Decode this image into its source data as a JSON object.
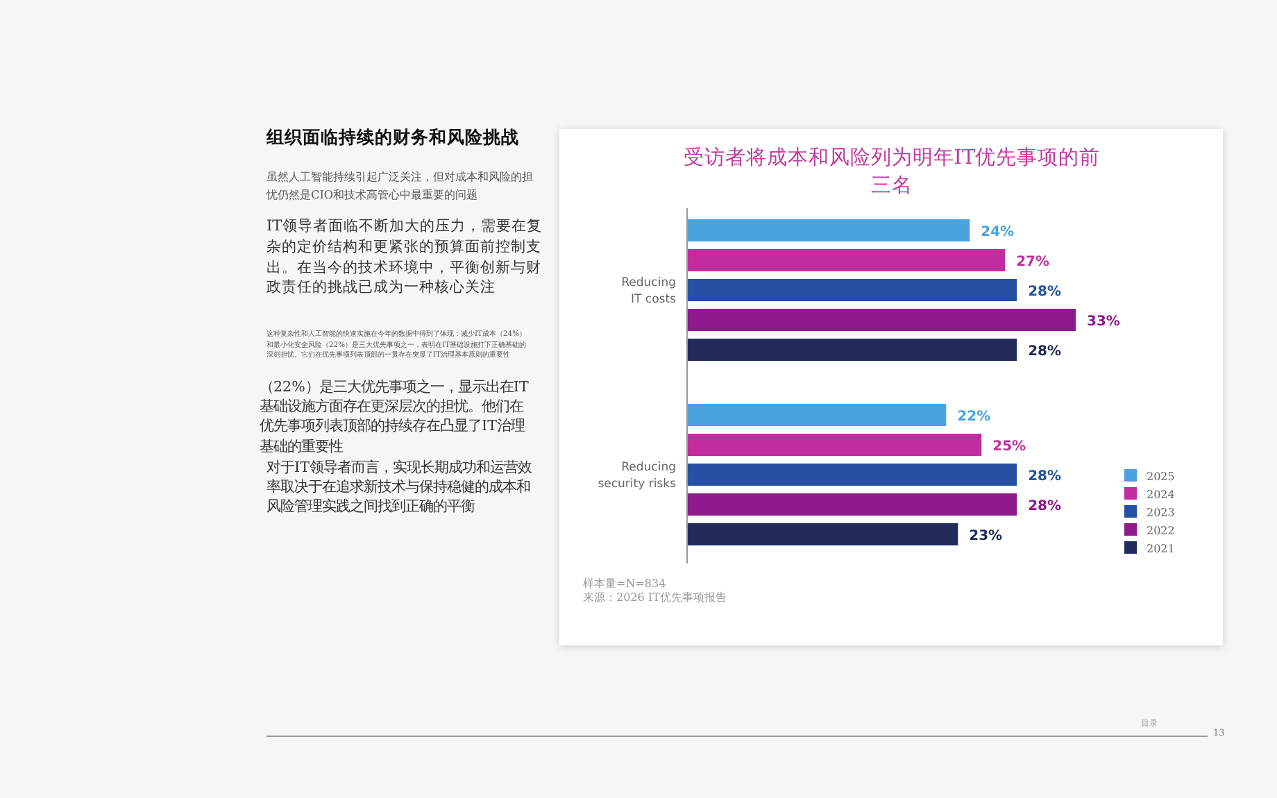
{
  "chart_data": {
    "type": "bar",
    "orientation": "horizontal",
    "title": "受访者将成本和风险列为明年IT优先事项的前三名",
    "categories": [
      "Reducing IT costs",
      "Reducing security risks"
    ],
    "series": [
      {
        "name": "2025",
        "color": "#4aa3df",
        "values": [
          24,
          22
        ],
        "value_labels": [
          "24%",
          "22%"
        ]
      },
      {
        "name": "2024",
        "color": "#c12d9e",
        "values": [
          27,
          25
        ],
        "value_labels": [
          "27%",
          "25%"
        ]
      },
      {
        "name": "2023",
        "color": "#2551a3",
        "values": [
          28,
          28
        ],
        "value_labels": [
          "28%",
          "28%"
        ]
      },
      {
        "name": "2022",
        "color": "#8e1a8c",
        "values": [
          33,
          28
        ],
        "value_labels": [
          "33%",
          "28%"
        ]
      },
      {
        "name": "2021",
        "color": "#232a5c",
        "values": [
          28,
          23
        ],
        "value_labels": [
          "28%",
          "23%"
        ]
      }
    ],
    "legend": "right",
    "annotations": [
      "组织面临持续的财务和风险挑战",
      "虽然人工智能持续引起广泛关注，但对成本和风险的担忧仍然是CIO和技术高管心中最重要的问题",
      "IT领导者面临不断加大的压力，需要在复杂的定价结构和更紧张的预算面前控制支出。在当今的技术环境中，平衡创新与财政责任的挑战已成为一种核心关注",
      "这种复杂性和人工智能的快速实施在今年的数据中得到了体现：减少IT成本（24%）和最小化安全风险（22%）是三大优先事项之一，表明在IT基础设施打下正确基础的深刻担忧。它们在优先事项列表顶部的一贯存在突显了IT治理基本原则的重要性",
      "（22%）是三大优先事项之一，显示出在IT基础设施方面存在更深层次的担忧。他们在优先事项列表顶部的持续存在凸显了IT治理基础的重要性",
      "对于IT领导者而言，实现长期成功和运营效率取决于在追求新技术与保持稳健的成本和风险管理实践之间找到正确的平衡",
      "样本量=N=834",
      "来源：2026 IT优先事项报告",
      "目录",
      "13"
    ]
  }
}
